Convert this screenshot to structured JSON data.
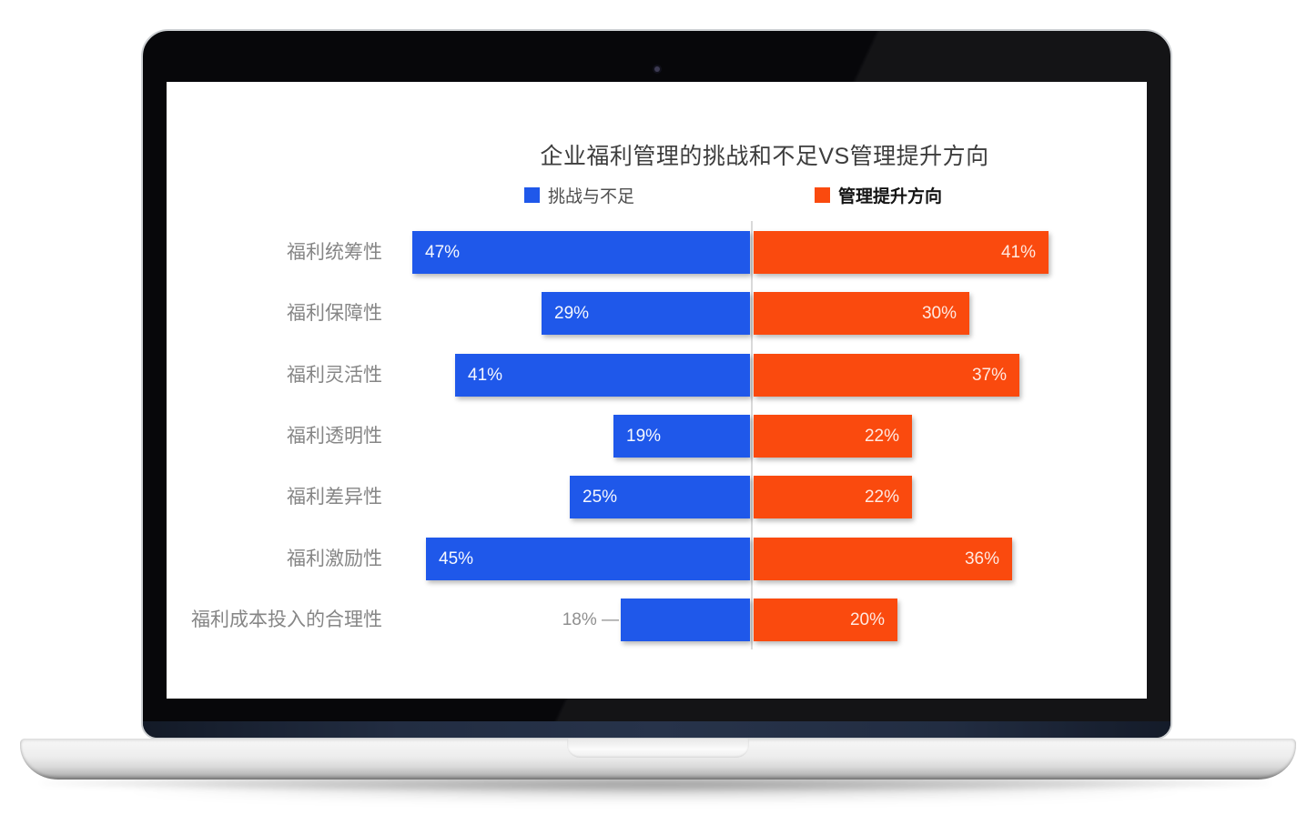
{
  "chart_data": {
    "type": "bar",
    "orientation": "horizontal-diverging",
    "title": "企业福利管理的挑战和不足VS管理提升方向",
    "categories": [
      "福利统筹性",
      "福利保障性",
      "福利灵活性",
      "福利透明性",
      "福利差异性",
      "福利激励性",
      "福利成本投入的合理性"
    ],
    "series": [
      {
        "name": "挑战与不足",
        "side": "left",
        "color": "#1f58ea",
        "values": [
          47,
          29,
          41,
          19,
          25,
          45,
          18
        ],
        "outside_label_indices": [
          6
        ]
      },
      {
        "name": "管理提升方向",
        "side": "right",
        "color": "#fa4a0e",
        "values": [
          41,
          30,
          37,
          22,
          22,
          36,
          20
        ],
        "outside_label_indices": []
      }
    ],
    "value_suffix": "%",
    "leader_dash": "—",
    "xlim_each_side": [
      0,
      50
    ],
    "legend_position": "top",
    "grid": false,
    "divider_color": "#d9d9d9"
  }
}
